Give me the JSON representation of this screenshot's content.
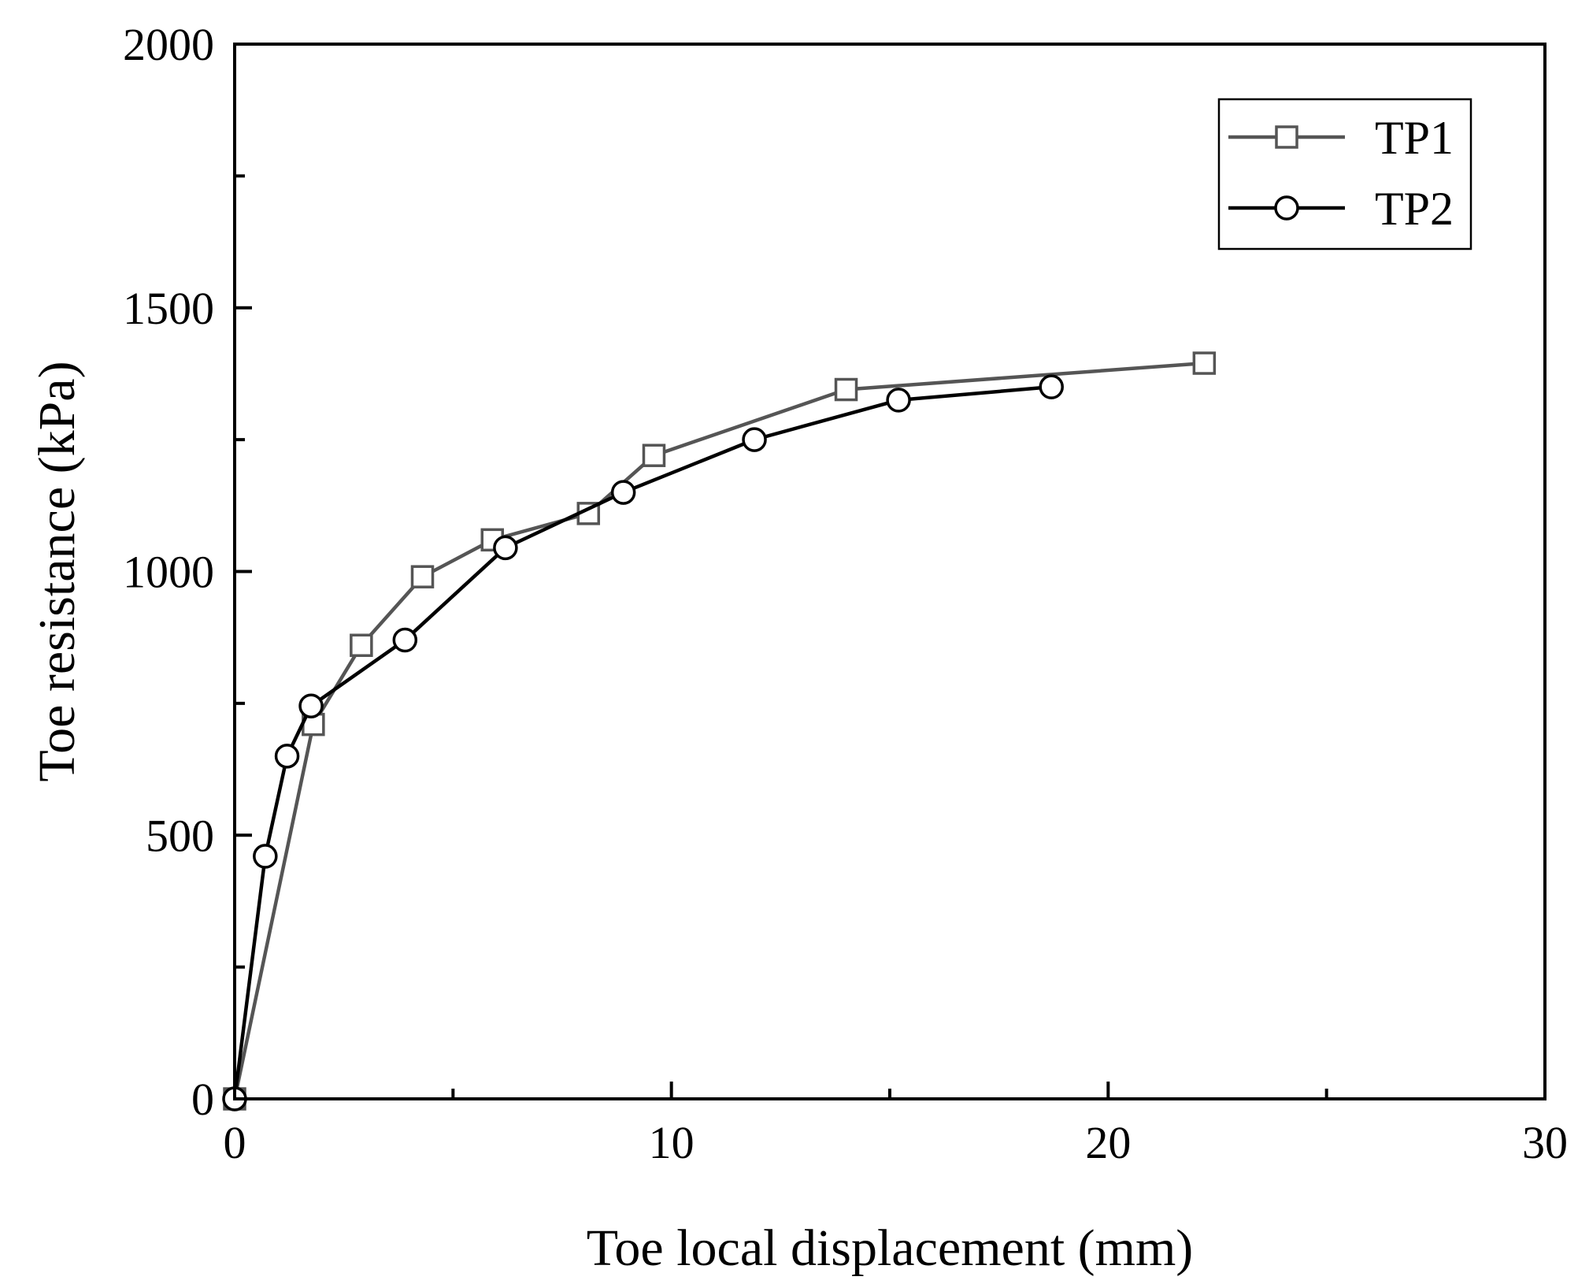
{
  "chart_data": {
    "type": "line",
    "xlabel": "Toe local displacement (mm)",
    "ylabel": "Toe resistance (kPa)",
    "xlim": [
      0,
      30
    ],
    "ylim": [
      0,
      2000
    ],
    "x_ticks": [
      0,
      10,
      20,
      30
    ],
    "y_ticks": [
      0,
      500,
      1000,
      1500,
      2000
    ],
    "x_minor_step": 5,
    "y_minor_step": 250,
    "grid": false,
    "legend_position": "top-right",
    "series": [
      {
        "name": "TP1",
        "marker": "square",
        "color": "#555555",
        "points": [
          {
            "x": 0.0,
            "y": 0
          },
          {
            "x": 1.8,
            "y": 710
          },
          {
            "x": 2.9,
            "y": 860
          },
          {
            "x": 4.3,
            "y": 990
          },
          {
            "x": 5.9,
            "y": 1060
          },
          {
            "x": 8.1,
            "y": 1110
          },
          {
            "x": 9.6,
            "y": 1220
          },
          {
            "x": 14.0,
            "y": 1345
          },
          {
            "x": 22.2,
            "y": 1395
          }
        ]
      },
      {
        "name": "TP2",
        "marker": "circle",
        "color": "#000000",
        "points": [
          {
            "x": 0.0,
            "y": 0
          },
          {
            "x": 0.7,
            "y": 460
          },
          {
            "x": 1.2,
            "y": 650
          },
          {
            "x": 1.75,
            "y": 745
          },
          {
            "x": 3.9,
            "y": 870
          },
          {
            "x": 6.2,
            "y": 1045
          },
          {
            "x": 8.9,
            "y": 1150
          },
          {
            "x": 11.9,
            "y": 1250
          },
          {
            "x": 15.2,
            "y": 1325
          },
          {
            "x": 18.7,
            "y": 1350
          }
        ]
      }
    ]
  }
}
